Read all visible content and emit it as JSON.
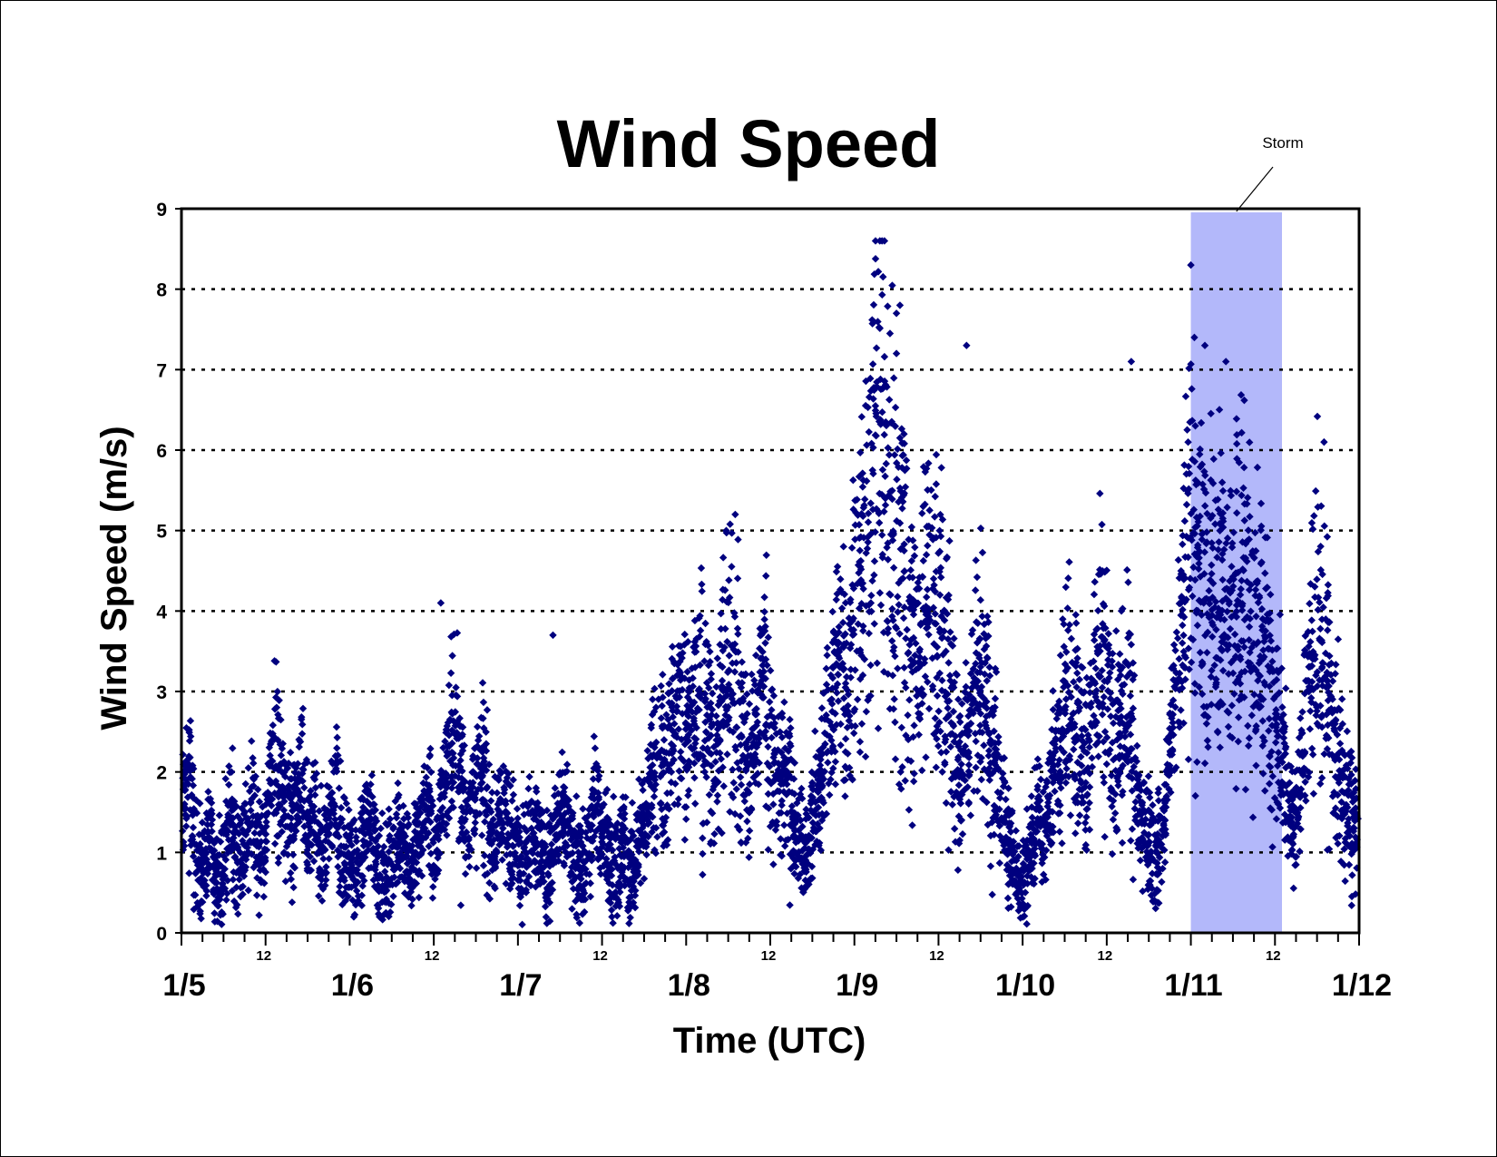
{
  "chart_data": {
    "type": "scatter",
    "title": "Wind Speed",
    "xlabel": "Time (UTC)",
    "ylabel": "Wind Speed (m/s)",
    "ylim": [
      0,
      9
    ],
    "yticks": [
      "0",
      "1",
      "2",
      "3",
      "4",
      "5",
      "6",
      "7",
      "8",
      "9"
    ],
    "xlim": [
      "1/5 00:00",
      "1/12 00:00"
    ],
    "x_major_ticks": [
      "1/5",
      "1/6",
      "1/7",
      "1/8",
      "1/9",
      "1/10",
      "1/11",
      "1/12"
    ],
    "x_minor_tick_label": "12",
    "grid": "horizontal dotted at each integer",
    "marker": "diamond",
    "series": [
      {
        "color": "#00007f",
        "x_day_start": 5,
        "points_per_day": 24,
        "values_by_day": {
          "1/5": [
            1.4,
            1.9,
            1.1,
            0.8,
            1.2,
            0.5,
            1.0,
            1.5,
            0.8,
            1.1,
            1.6,
            0.9,
            1.2,
            2.4,
            1.9,
            1.6,
            1.3,
            2.0,
            1.1,
            1.4,
            0.9,
            1.2,
            1.8,
            1.0
          ],
          "1/6": [
            1.0,
            0.7,
            1.2,
            1.5,
            1.0,
            0.6,
            0.9,
            1.3,
            1.1,
            0.8,
            1.2,
            1.7,
            1.0,
            1.5,
            2.2,
            2.5,
            1.9,
            1.4,
            1.8,
            2.0,
            1.3,
            1.1,
            1.6,
            1.2
          ],
          "1/7": [
            1.1,
            0.9,
            1.4,
            1.2,
            0.8,
            1.0,
            1.5,
            1.3,
            0.9,
            0.7,
            1.1,
            1.6,
            1.3,
            1.0,
            0.8,
            1.2,
            0.6,
            1.0,
            1.4,
            1.8,
            2.2,
            1.9,
            2.6,
            2.9
          ],
          "1/8": [
            2.3,
            2.9,
            3.3,
            2.6,
            2.1,
            2.8,
            3.5,
            3.1,
            2.4,
            2.0,
            2.7,
            3.2,
            2.5,
            1.8,
            2.2,
            1.5,
            1.2,
            0.9,
            1.4,
            1.8,
            2.4,
            2.9,
            3.4,
            3.0
          ],
          "1/9": [
            3.9,
            4.6,
            5.1,
            5.9,
            6.3,
            5.4,
            4.8,
            4.2,
            3.7,
            3.4,
            4.0,
            4.6,
            3.8,
            3.2,
            2.6,
            2.0,
            2.4,
            2.9,
            3.3,
            2.7,
            2.1,
            1.6,
            1.2,
            0.8
          ],
          "1/10": [
            0.5,
            0.9,
            1.4,
            1.2,
            1.8,
            2.4,
            2.9,
            3.1,
            2.6,
            2.0,
            2.8,
            3.4,
            2.9,
            2.2,
            2.5,
            3.0,
            1.8,
            1.4,
            1.1,
            0.9,
            1.3,
            2.2,
            3.1,
            4.3
          ],
          "1/11": [
            5.3,
            4.6,
            4.1,
            3.9,
            4.4,
            3.7,
            4.2,
            4.6,
            3.9,
            3.4,
            3.8,
            3.2,
            2.6,
            2.1,
            1.6,
            1.3,
            2.4,
            3.4,
            3.9,
            3.2,
            2.8,
            2.2,
            1.8,
            1.3
          ]
        },
        "highlights": [
          {
            "x": "1/11 00:00",
            "y": 8.3
          },
          {
            "x": "1/9 06:00",
            "y": 7.7
          },
          {
            "x": "1/9 06:30",
            "y": 7.8
          },
          {
            "x": "1/9 16:00",
            "y": 7.3
          },
          {
            "x": "1/10 15:30",
            "y": 7.1
          },
          {
            "x": "1/11 00:30",
            "y": 7.4
          },
          {
            "x": "1/11 02:00",
            "y": 7.3
          },
          {
            "x": "1/11 05:00",
            "y": 7.1
          },
          {
            "x": "1/11 19:00",
            "y": 6.1
          },
          {
            "x": "1/8 07:00",
            "y": 5.2
          },
          {
            "x": "1/6 13:00",
            "y": 4.1
          },
          {
            "x": "1/7 05:00",
            "y": 3.7
          }
        ]
      }
    ],
    "annotations": [
      {
        "label": "Storm",
        "x_start": "1/11 00:00",
        "x_end": "1/11 13:00",
        "fill": "#b3b8fa"
      }
    ]
  }
}
